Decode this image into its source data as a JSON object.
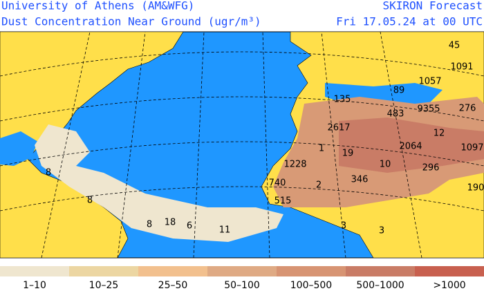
{
  "header": {
    "left_title": "University of Athens (AM&WFG)",
    "left_subtitle": "Dust Concentration Near Ground (ugr/m³)",
    "right_title": "SKIRON Forecast",
    "right_subtitle": "Fri 17.05.24 at 00 UTC"
  },
  "map": {
    "point_values": [
      45,
      1091,
      1057,
      89,
      135,
      483,
      9355,
      276,
      2617,
      12,
      1,
      19,
      2064,
      1097,
      1228,
      10,
      296,
      740,
      2,
      346,
      190,
      515,
      3,
      3,
      8,
      8,
      8,
      18,
      6,
      11
    ]
  },
  "legend": {
    "items": [
      {
        "label": "1–10",
        "color": "#efe6cf"
      },
      {
        "label": "10–25",
        "color": "#ecd6a2"
      },
      {
        "label": "25–50",
        "color": "#f2c08e"
      },
      {
        "label": "50–100",
        "color": "#dfaa84"
      },
      {
        "label": "100–500",
        "color": "#d79473"
      },
      {
        "label": "500–1000",
        "color": "#c97c66"
      },
      {
        "label": ">1000",
        "color": "#c8604f"
      }
    ]
  }
}
